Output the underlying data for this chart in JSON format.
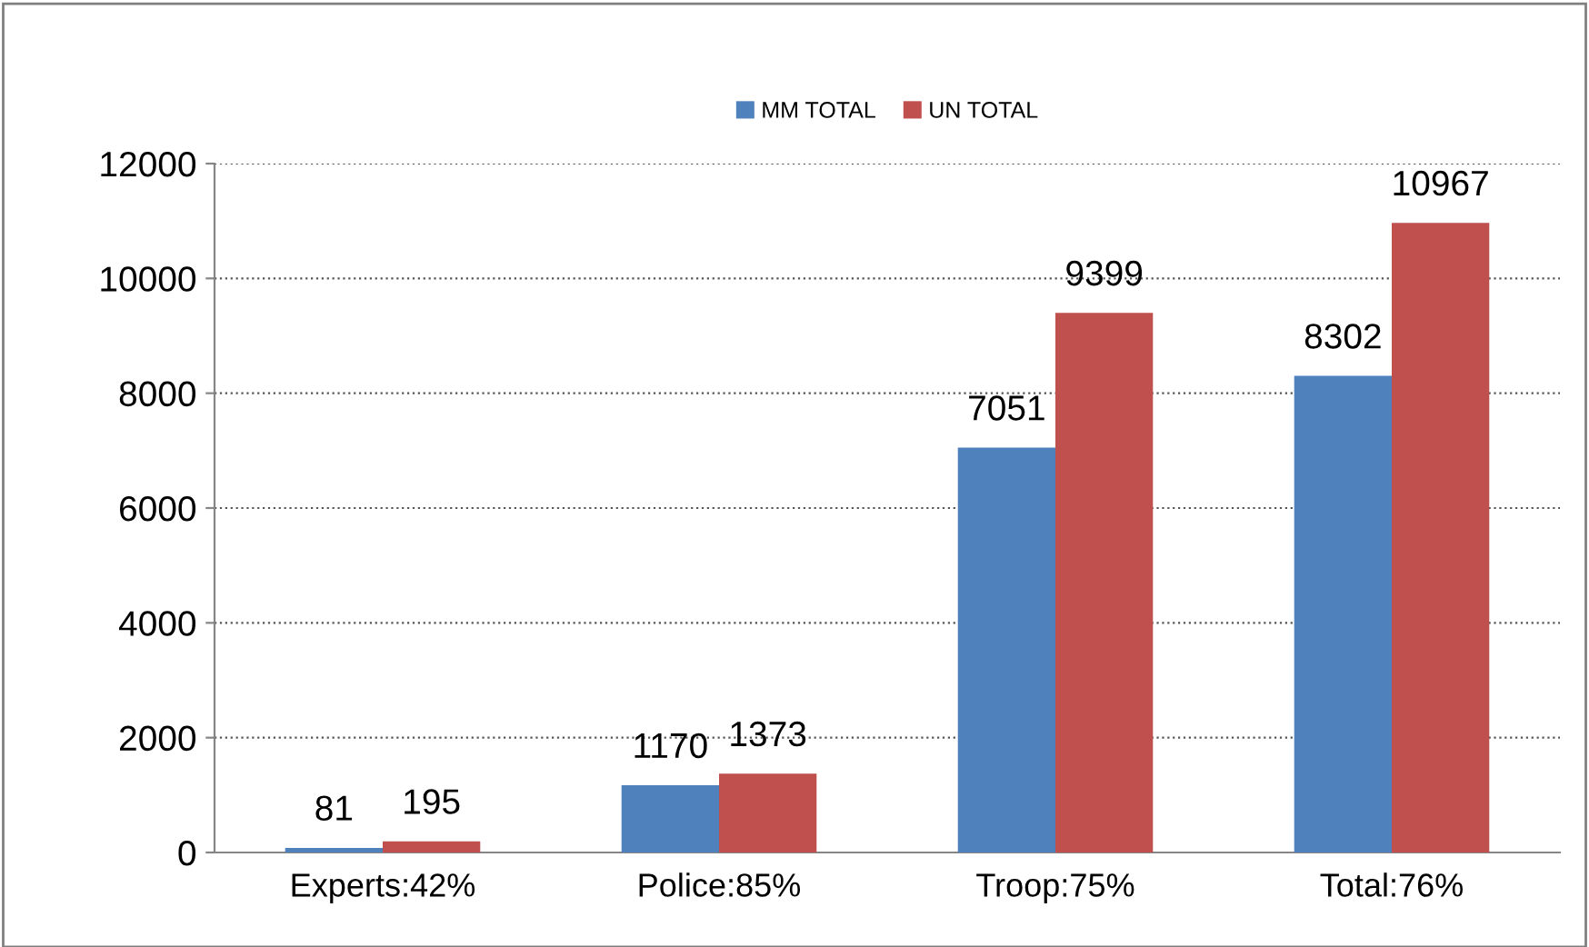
{
  "chart_data": {
    "type": "bar",
    "categories": [
      "Experts:42%",
      "Police:85%",
      "Troop:75%",
      "Total:76%"
    ],
    "series": [
      {
        "name": "MM TOTAL",
        "color": "#4f81bd",
        "values": [
          81,
          1170,
          7051,
          8302
        ]
      },
      {
        "name": "UN TOTAL",
        "color": "#c0504d",
        "values": [
          195,
          1373,
          9399,
          10967
        ]
      }
    ],
    "ylim": [
      0,
      12000
    ],
    "yticks": [
      0,
      2000,
      4000,
      6000,
      8000,
      10000,
      12000
    ],
    "grid": "y",
    "legend": "top",
    "data_labels": true
  }
}
